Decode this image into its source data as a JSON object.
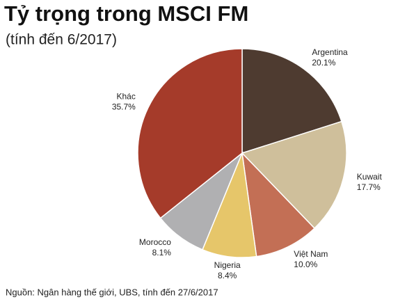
{
  "chart_data": {
    "type": "pie",
    "title": "Tỷ trọng trong MSCI FM",
    "subtitle": "(tính đến 6/2017)",
    "source": "Nguồn: Ngân hàng thế giới, UBS, tính đến 27/6/2017",
    "categories": [
      "Argentina",
      "Kuwait",
      "Việt Nam",
      "Nigeria",
      "Morocco",
      "Khác"
    ],
    "values": [
      20.1,
      17.7,
      10.0,
      8.4,
      8.1,
      35.7
    ],
    "value_labels": [
      "20.1%",
      "17.7%",
      "10.0%",
      "8.4%",
      "8.1%",
      "35.7%"
    ],
    "colors": [
      "#4e3b30",
      "#cfbf9b",
      "#c36f55",
      "#e6c66a",
      "#b0b0b2",
      "#a53b2a"
    ]
  }
}
